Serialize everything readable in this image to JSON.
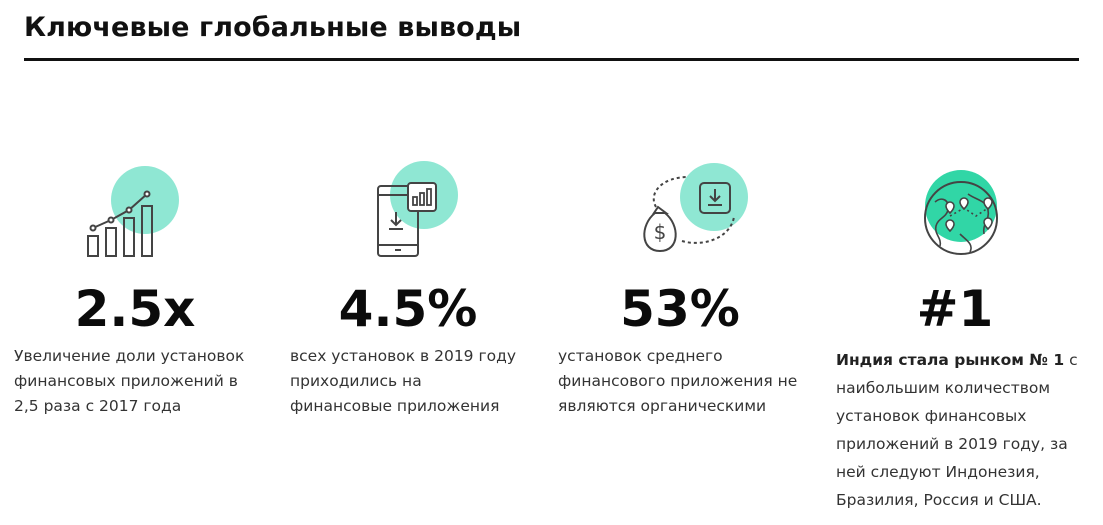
{
  "header": {
    "title": "Ключевые глобальные выводы"
  },
  "colors": {
    "accent": "#7ee0c9",
    "accent_strong": "#31d6a6",
    "rule": "#111111",
    "text": "#333333"
  },
  "cards": [
    {
      "icon": "growth-chart-icon",
      "stat": "2.5x",
      "description": "Увеличение доли установок финансовых приложений в 2,5 раза с 2017 года"
    },
    {
      "icon": "phone-download-icon",
      "stat": "4.5%",
      "description": "всех установок в 2019 году приходились на финансовые приложения"
    },
    {
      "icon": "money-bag-download-icon",
      "stat": "53%",
      "description": "установок среднего финансового приложения не являются органическими"
    },
    {
      "icon": "globe-pins-icon",
      "stat": "#1",
      "description_bold": "Индия стала рынком № 1",
      "description": " с наибольшим количеством установок финансовых приложений в 2019 году, за ней следуют Индонезия, Бразилия, Россия и США."
    }
  ]
}
